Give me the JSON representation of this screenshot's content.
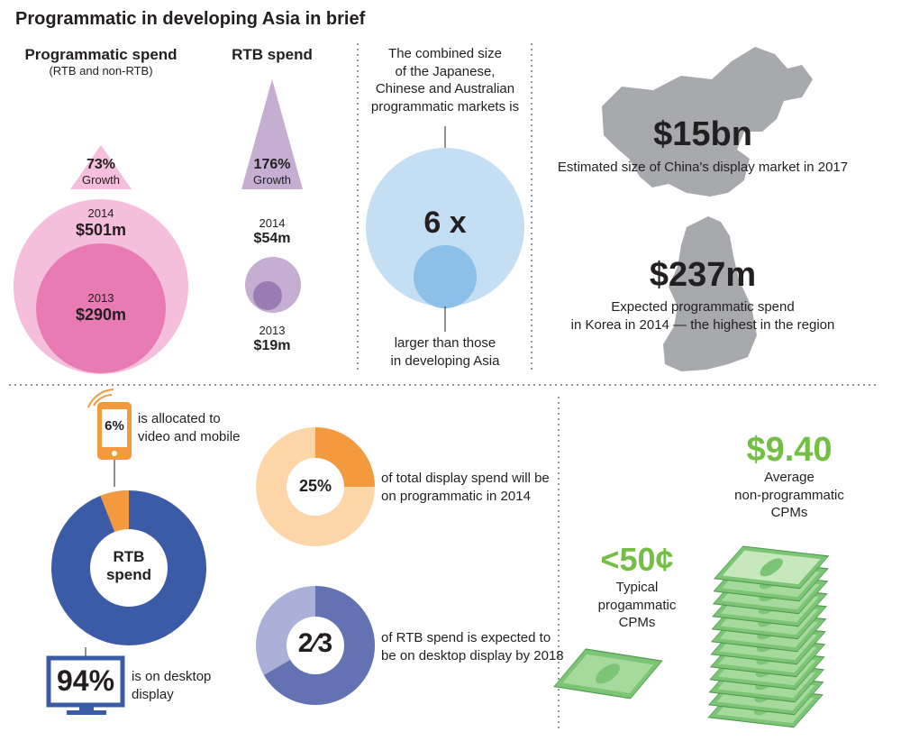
{
  "title": "Programmatic in developing Asia in brief",
  "spend": {
    "prog_heading": "Programmatic spend",
    "prog_sub": "(RTB and non-RTB)",
    "prog_growth_value": "73%",
    "prog_growth_label": "Growth",
    "prog_2014_year": "2014",
    "prog_2014_value": "$501m",
    "prog_2013_year": "2013",
    "prog_2013_value": "$290m",
    "rtb_heading": "RTB spend",
    "rtb_growth_value": "176%",
    "rtb_growth_label": "Growth",
    "rtb_2014_year": "2014",
    "rtb_2014_value": "$54m",
    "rtb_2013_year": "2013",
    "rtb_2013_value": "$19m"
  },
  "combined": {
    "top_lines": [
      "The combined size",
      "of the Japanese,",
      "Chinese and Australian",
      "programmatic markets is"
    ],
    "multiplier": "6 x",
    "bottom_lines": [
      "larger than those",
      "in developing Asia"
    ]
  },
  "china": {
    "value": "$15bn",
    "caption": "Estimated size of China's display market in 2017"
  },
  "korea": {
    "value": "$237m",
    "caption_lines": [
      "Expected programmatic spend",
      "in Korea in 2014 — the highest in the region"
    ]
  },
  "rtb_split": {
    "center_lines": [
      "RTB",
      "spend"
    ],
    "mobile_pct": "6%",
    "mobile_fraction": 0.06,
    "mobile_caption_lines": [
      "is allocated to",
      "video and mobile"
    ],
    "desktop_pct": "94%",
    "desktop_caption_lines": [
      "is on desktop",
      "display"
    ]
  },
  "share_2014": {
    "center": "25%",
    "fraction": 0.25,
    "caption_lines": [
      "of total display spend will be",
      "on programmatic in 2014"
    ]
  },
  "desktop_2018": {
    "center": "2⁄3",
    "fraction": 0.6667,
    "caption_lines": [
      "of RTB spend is expected to",
      "be on desktop display by 2018"
    ]
  },
  "cpm": {
    "non_prog_value": "$9.40",
    "non_prog_lines": [
      "Average",
      "non-programmatic",
      "CPMs"
    ],
    "prog_value": "<50¢",
    "prog_lines": [
      "Typical",
      "progammatic",
      "CPMs"
    ]
  },
  "colors": {
    "pink_light": "#f5bedc",
    "pink_dark": "#e87bb4",
    "purple_light": "#c5aed1",
    "purple_dark": "#9a7bb2",
    "blue_light": "#c4dff3",
    "blue_dark": "#8cc0e8",
    "gray_map": "#a7a9ac",
    "navy": "#3b5ba7",
    "orange": "#f39a3f",
    "peach": "#fcd5a8",
    "slate": "#6272b3",
    "slate_light": "#aab0d8",
    "green_text": "#72bf44",
    "divider": "#8a96a3"
  }
}
